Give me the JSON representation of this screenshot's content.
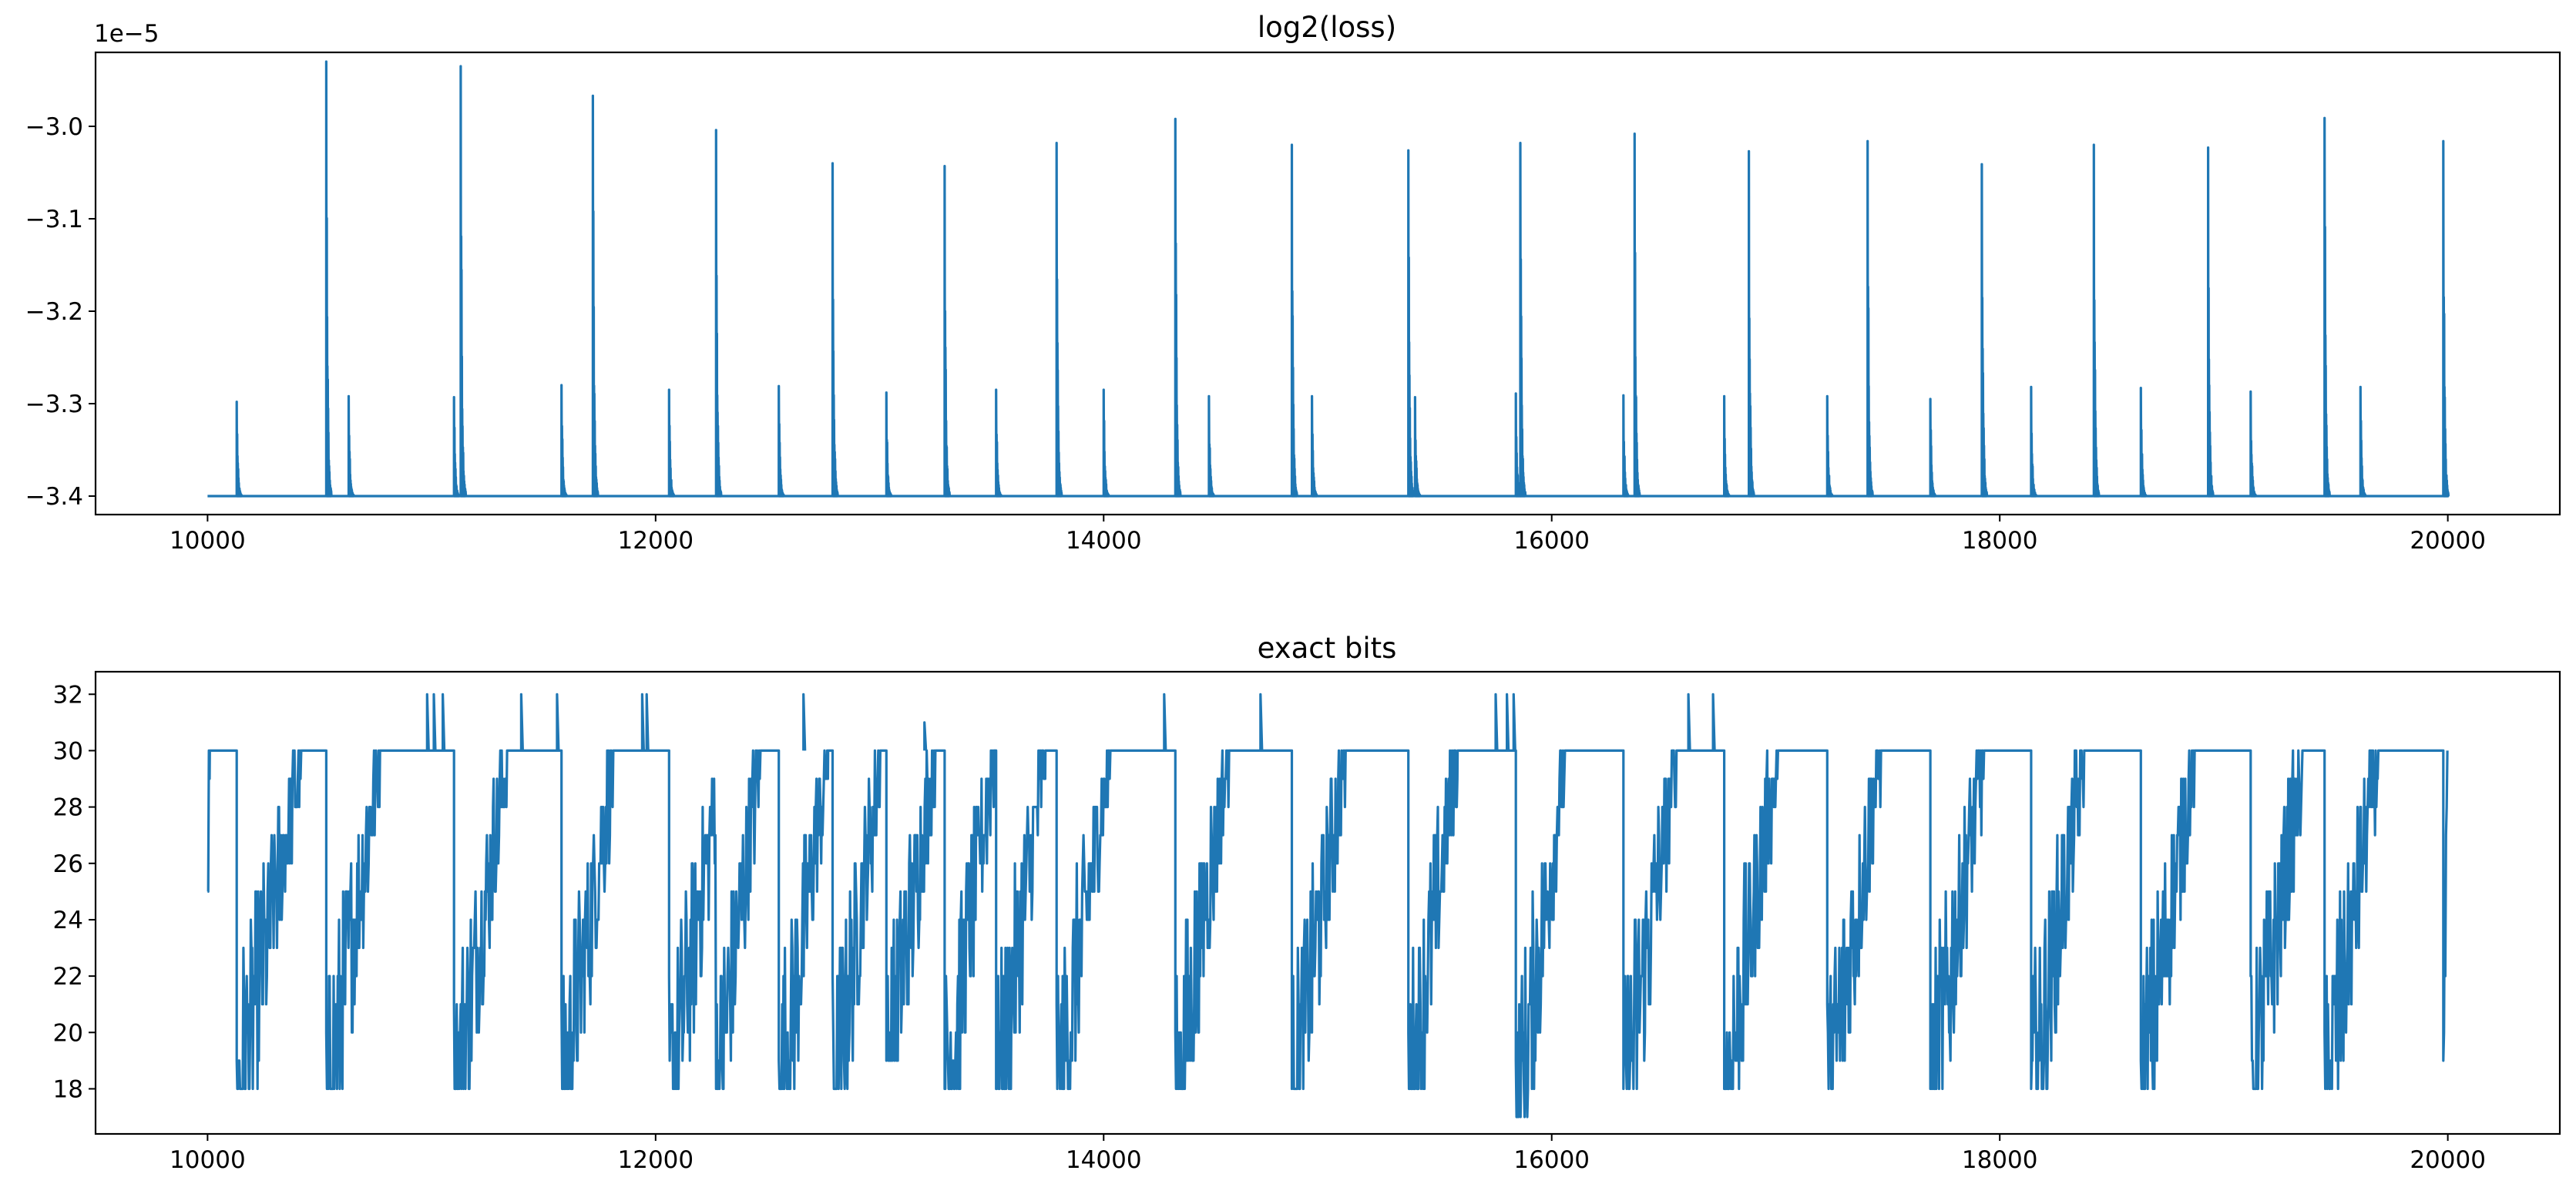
{
  "figure": {
    "background": "#ffffff",
    "line_color": "#1f77b4"
  },
  "chart_data": [
    {
      "type": "line",
      "title": "log2(loss)",
      "xlabel": "",
      "ylabel": "",
      "y_offset_text": "1e−5",
      "xlim": [
        9500,
        20500
      ],
      "ylim": [
        -3.42,
        -2.92
      ],
      "x_ticks": [
        10000,
        12000,
        14000,
        16000,
        18000,
        20000
      ],
      "y_ticks": [
        -3.4,
        -3.3,
        -3.2,
        -3.1,
        -3.0
      ],
      "x_tick_labels": [
        "10000",
        "12000",
        "14000",
        "16000",
        "18000",
        "20000"
      ],
      "y_tick_labels": [
        "−3.4",
        "−3.3",
        "−3.2",
        "−3.1",
        "−3.0"
      ],
      "grid": false,
      "legend": "none",
      "series": [
        {
          "x_range": [
            10000,
            20000
          ],
          "baseline": -3.4,
          "spikes": [
            {
              "x": 10130,
              "y": -3.298
            },
            {
              "x": 10530,
              "y": -2.93
            },
            {
              "x": 10630,
              "y": -3.292
            },
            {
              "x": 11100,
              "y": -3.293
            },
            {
              "x": 11130,
              "y": -2.935
            },
            {
              "x": 11580,
              "y": -3.28
            },
            {
              "x": 11720,
              "y": -2.967
            },
            {
              "x": 12060,
              "y": -3.285
            },
            {
              "x": 12270,
              "y": -3.004
            },
            {
              "x": 12550,
              "y": -3.281
            },
            {
              "x": 12790,
              "y": -3.04
            },
            {
              "x": 13030,
              "y": -3.288
            },
            {
              "x": 13290,
              "y": -3.043
            },
            {
              "x": 13520,
              "y": -3.285
            },
            {
              "x": 13790,
              "y": -3.018
            },
            {
              "x": 14000,
              "y": -3.285
            },
            {
              "x": 14320,
              "y": -2.992
            },
            {
              "x": 14470,
              "y": -3.292
            },
            {
              "x": 14840,
              "y": -3.02
            },
            {
              "x": 14930,
              "y": -3.292
            },
            {
              "x": 15360,
              "y": -3.026
            },
            {
              "x": 15390,
              "y": -3.293
            },
            {
              "x": 15840,
              "y": -3.289
            },
            {
              "x": 15860,
              "y": -3.018
            },
            {
              "x": 16320,
              "y": -3.291
            },
            {
              "x": 16370,
              "y": -3.008
            },
            {
              "x": 16770,
              "y": -3.292
            },
            {
              "x": 16880,
              "y": -3.027
            },
            {
              "x": 17230,
              "y": -3.292
            },
            {
              "x": 17410,
              "y": -3.016
            },
            {
              "x": 17690,
              "y": -3.295
            },
            {
              "x": 17920,
              "y": -3.041
            },
            {
              "x": 18140,
              "y": -3.282
            },
            {
              "x": 18420,
              "y": -3.02
            },
            {
              "x": 18630,
              "y": -3.283
            },
            {
              "x": 18930,
              "y": -3.023
            },
            {
              "x": 19120,
              "y": -3.287
            },
            {
              "x": 19450,
              "y": -2.991
            },
            {
              "x": 19610,
              "y": -3.282
            },
            {
              "x": 19980,
              "y": -3.016
            }
          ]
        }
      ]
    },
    {
      "type": "line",
      "title": "exact bits",
      "xlabel": "",
      "ylabel": "",
      "xlim": [
        9500,
        20500
      ],
      "ylim": [
        16.4,
        32.8
      ],
      "x_ticks": [
        10000,
        12000,
        14000,
        16000,
        18000,
        20000
      ],
      "y_ticks": [
        18,
        20,
        22,
        24,
        26,
        28,
        30,
        32
      ],
      "x_tick_labels": [
        "10000",
        "12000",
        "14000",
        "16000",
        "18000",
        "20000"
      ],
      "y_tick_labels": [
        "18",
        "20",
        "22",
        "24",
        "26",
        "28",
        "30",
        "32"
      ],
      "grid": false,
      "legend": "none",
      "series": [
        {
          "x_range": [
            10000,
            20000
          ],
          "max_value": 30,
          "segments": [
            {
              "start": 10000,
              "min": 25,
              "rise": 10,
              "plateau": 10130
            },
            {
              "start": 10130,
              "min": 18,
              "rise": 290,
              "plateau": 10530
            },
            {
              "start": 10530,
              "min": 18,
              "rise": 240,
              "plateau": 11100
            },
            {
              "start": 11100,
              "min": 18,
              "rise": 240,
              "plateau": 11580
            },
            {
              "start": 11580,
              "min": 18,
              "rise": 240,
              "plateau": 12060
            },
            {
              "start": 12060,
              "min": 18,
              "rise": 240,
              "plateau": 12270
            },
            {
              "start": 12270,
              "min": 18,
              "rise": 200,
              "plateau": 12550
            },
            {
              "start": 12550,
              "min": 18,
              "rise": 220,
              "plateau": 12790
            },
            {
              "start": 12790,
              "min": 18,
              "rise": 220,
              "plateau": 13030
            },
            {
              "start": 13030,
              "min": 19,
              "rise": 220,
              "plateau": 13290
            },
            {
              "start": 13290,
              "min": 18,
              "rise": 220,
              "plateau": 13520
            },
            {
              "start": 13520,
              "min": 18,
              "rise": 220,
              "plateau": 13790
            },
            {
              "start": 13790,
              "min": 18,
              "rise": 240,
              "plateau": 14320
            },
            {
              "start": 14320,
              "min": 18,
              "rise": 240,
              "plateau": 14840
            },
            {
              "start": 14840,
              "min": 18,
              "rise": 240,
              "plateau": 15360
            },
            {
              "start": 15360,
              "min": 18,
              "rise": 220,
              "plateau": 15840
            },
            {
              "start": 15840,
              "min": 17,
              "rise": 220,
              "plateau": 16320
            },
            {
              "start": 16320,
              "min": 18,
              "rise": 240,
              "plateau": 16770
            },
            {
              "start": 16770,
              "min": 18,
              "rise": 240,
              "plateau": 17230
            },
            {
              "start": 17230,
              "min": 18,
              "rise": 240,
              "plateau": 17690
            },
            {
              "start": 17690,
              "min": 18,
              "rise": 240,
              "plateau": 18140
            },
            {
              "start": 18140,
              "min": 18,
              "rise": 240,
              "plateau": 18630
            },
            {
              "start": 18630,
              "min": 18,
              "rise": 240,
              "plateau": 19120
            },
            {
              "start": 19120,
              "min": 18,
              "rise": 240,
              "plateau": 19450
            },
            {
              "start": 19450,
              "min": 18,
              "rise": 240,
              "plateau": 19980
            },
            {
              "start": 19980,
              "min": 18,
              "rise": 20,
              "plateau": 20000
            }
          ],
          "excursions_to_32": [
            10980,
            11010,
            11050,
            11400,
            11560,
            11940,
            11960,
            12660,
            14270,
            14700,
            15750,
            15800,
            15830,
            16610,
            16720
          ],
          "excursion_to_31": 13200
        }
      ]
    }
  ]
}
